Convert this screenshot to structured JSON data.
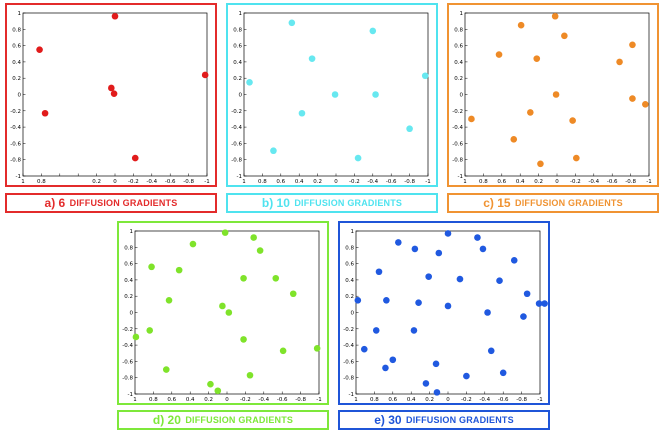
{
  "figure_panels": [
    {
      "id": "a",
      "caption_prefix": "a) 6",
      "caption_suffix": "DIFFUSION GRADIENTS",
      "color": "#e32b2b",
      "marker_color": "#e11b1b"
    },
    {
      "id": "b",
      "caption_prefix": "b) 10",
      "caption_suffix": "DIFFUSION GRADIENTS",
      "color": "#4fe3ef",
      "marker_color": "#67e8f0"
    },
    {
      "id": "c",
      "caption_prefix": "c) 15",
      "caption_suffix": "DIFFUSION GRADIENTS",
      "color": "#f09332",
      "marker_color": "#ee8a26"
    },
    {
      "id": "d",
      "caption_prefix": "d) 20",
      "caption_suffix": "DIFFUSION GRADIENTS",
      "color": "#7ee83a",
      "marker_color": "#7fe32a"
    },
    {
      "id": "e",
      "caption_prefix": "e) 30",
      "caption_suffix": "DIFFUSION GRADIENTS",
      "color": "#1f55d8",
      "marker_color": "#2059e0"
    }
  ],
  "chart_data": [
    {
      "type": "scatter",
      "panel": "a",
      "xlim": [
        1,
        -1
      ],
      "ylim": [
        -1,
        1
      ],
      "x_ticks": [
        1,
        0.8,
        0.6,
        0.4,
        0.2,
        0,
        -0.2,
        -0.4,
        -0.6,
        -0.8,
        -1
      ],
      "x_tick_labels": [
        "1",
        "0.8",
        "",
        "",
        "0.2",
        "0",
        "-0.2",
        "-0.4",
        "-0.6",
        "-0.8",
        "-1"
      ],
      "y_ticks": [
        1,
        0.8,
        0.6,
        0.4,
        0.2,
        0,
        -0.2,
        -0.4,
        -0.6,
        -0.8,
        -1
      ],
      "y_tick_labels": [
        "1",
        "0.8",
        "0.6",
        "0.4",
        "0.2",
        "0",
        "-0.2",
        "-0.4",
        "-0.6",
        "-0.8",
        "-1"
      ],
      "x": [
        0.0,
        0.82,
        0.04,
        0.01,
        0.76,
        -0.22,
        -0.98
      ],
      "y": [
        0.96,
        0.55,
        0.08,
        0.01,
        -0.23,
        -0.78,
        0.24
      ]
    },
    {
      "type": "scatter",
      "panel": "b",
      "xlim": [
        1,
        -1
      ],
      "ylim": [
        -1,
        1
      ],
      "x_ticks": [
        1,
        0.8,
        0.6,
        0.4,
        0.2,
        0,
        -0.2,
        -0.4,
        -0.6,
        -0.8,
        -1
      ],
      "x_tick_labels": [
        "1",
        "0.8",
        "0.6",
        "0.4",
        "0.2",
        "0",
        "-0.2",
        "-0.4",
        "-0.6",
        "-0.8",
        "-1"
      ],
      "y_ticks": [
        1,
        0.8,
        0.6,
        0.4,
        0.2,
        0,
        -0.2,
        -0.4,
        -0.6,
        -0.8,
        -1
      ],
      "y_tick_labels": [
        "1",
        "0.8",
        "0.6",
        "0.4",
        "0.2",
        "0",
        "-0.2",
        "-0.4",
        "-0.6",
        "-0.8",
        "-1"
      ],
      "x": [
        0.48,
        -0.4,
        0.26,
        0.94,
        -0.97,
        0.01,
        -0.43,
        0.37,
        -0.8,
        0.68,
        -0.24
      ],
      "y": [
        0.88,
        0.78,
        0.44,
        0.15,
        0.23,
        0.0,
        0.0,
        -0.23,
        -0.42,
        -0.69,
        -0.78
      ]
    },
    {
      "type": "scatter",
      "panel": "c",
      "xlim": [
        1,
        -1
      ],
      "ylim": [
        -1,
        1
      ],
      "x_ticks": [
        1,
        0.8,
        0.6,
        0.4,
        0.2,
        0,
        -0.2,
        -0.4,
        -0.6,
        -0.8,
        -1
      ],
      "x_tick_labels": [
        "1",
        "0.8",
        "0.6",
        "0.4",
        "0.2",
        "0",
        "-0.2",
        "-0.4",
        "-0.6",
        "-0.8",
        "-1"
      ],
      "y_ticks": [
        1,
        0.8,
        0.6,
        0.4,
        0.2,
        0,
        -0.2,
        -0.4,
        -0.6,
        -0.8,
        -1
      ],
      "y_tick_labels": [
        "1",
        "0.8",
        "0.6",
        "0.4",
        "0.2",
        "0",
        "-0.2",
        "-0.4",
        "-0.6",
        "-0.8",
        "-1"
      ],
      "x": [
        0.02,
        0.39,
        -0.08,
        0.63,
        0.22,
        -0.82,
        -0.68,
        0.01,
        -0.96,
        -0.82,
        0.93,
        0.29,
        0.47,
        -0.17,
        -0.21,
        0.18
      ],
      "y": [
        0.96,
        0.85,
        0.72,
        0.49,
        0.44,
        0.61,
        0.4,
        0.0,
        -0.12,
        -0.05,
        -0.3,
        -0.22,
        -0.55,
        -0.32,
        -0.78,
        -0.85
      ]
    },
    {
      "type": "scatter",
      "panel": "d",
      "xlim": [
        1,
        -1
      ],
      "ylim": [
        -1,
        1
      ],
      "x_ticks": [
        1,
        0.8,
        0.6,
        0.4,
        0.2,
        0,
        -0.2,
        -0.4,
        -0.6,
        -0.8,
        -1
      ],
      "x_tick_labels": [
        "1",
        "0.8",
        "0.6",
        "0.4",
        "0.2",
        "0",
        "-0.2",
        "-0.4",
        "-0.6",
        "-0.8",
        "-1"
      ],
      "y_ticks": [
        1,
        0.8,
        0.6,
        0.4,
        0.2,
        0,
        -0.2,
        -0.4,
        -0.6,
        -0.8,
        -1
      ],
      "y_tick_labels": [
        "1",
        "0.8",
        "0.6",
        "0.4",
        "0.2",
        "0",
        "-0.2",
        "-0.4",
        "-0.6",
        "-0.8",
        "-1"
      ],
      "x": [
        0.02,
        0.37,
        -0.29,
        -0.36,
        0.82,
        0.52,
        0.63,
        -0.18,
        -0.53,
        -0.72,
        0.05,
        -0.02,
        0.84,
        0.99,
        0.66,
        -0.18,
        -0.61,
        -0.98,
        0.18,
        -0.25,
        0.1
      ],
      "y": [
        0.98,
        0.84,
        0.92,
        0.76,
        0.56,
        0.52,
        0.15,
        0.42,
        0.42,
        0.23,
        0.08,
        0.0,
        -0.22,
        -0.3,
        -0.7,
        -0.33,
        -0.47,
        -0.44,
        -0.88,
        -0.77,
        -0.96
      ]
    },
    {
      "type": "scatter",
      "panel": "e",
      "xlim": [
        1,
        -1
      ],
      "ylim": [
        -1,
        1
      ],
      "x_ticks": [
        1,
        0.8,
        0.6,
        0.4,
        0.2,
        0,
        -0.2,
        -0.4,
        -0.6,
        -0.8,
        -1
      ],
      "x_tick_labels": [
        "1",
        "0.8",
        "0.6",
        "0.4",
        "0.2",
        "0",
        "-0.2",
        "-0.4",
        "-0.6",
        "-0.8",
        "-1"
      ],
      "y_ticks": [
        1,
        0.8,
        0.6,
        0.4,
        0.2,
        0,
        -0.2,
        -0.4,
        -0.6,
        -0.8,
        -1
      ],
      "y_tick_labels": [
        "1",
        "0.8",
        "0.6",
        "0.4",
        "0.2",
        "0",
        "-0.2",
        "-0.4",
        "-0.6",
        "-0.8",
        "-1"
      ],
      "x": [
        0.0,
        -0.32,
        0.54,
        0.36,
        -0.38,
        0.1,
        0.75,
        -0.72,
        0.21,
        -0.13,
        -0.56,
        0.67,
        -0.86,
        0.32,
        0.0,
        -0.43,
        0.98,
        -0.99,
        -0.82,
        0.78,
        0.37,
        -0.47,
        0.91,
        0.6,
        0.68,
        -0.2,
        0.13,
        -0.6,
        0.24,
        0.12,
        -1.05
      ],
      "y": [
        0.97,
        0.92,
        0.86,
        0.78,
        0.78,
        0.73,
        0.5,
        0.64,
        0.44,
        0.41,
        0.39,
        0.15,
        0.23,
        0.12,
        0.08,
        0.0,
        0.15,
        0.11,
        -0.05,
        -0.22,
        -0.22,
        -0.47,
        -0.45,
        -0.58,
        -0.68,
        -0.78,
        -0.63,
        -0.74,
        -0.87,
        -0.98,
        0.11
      ]
    }
  ]
}
